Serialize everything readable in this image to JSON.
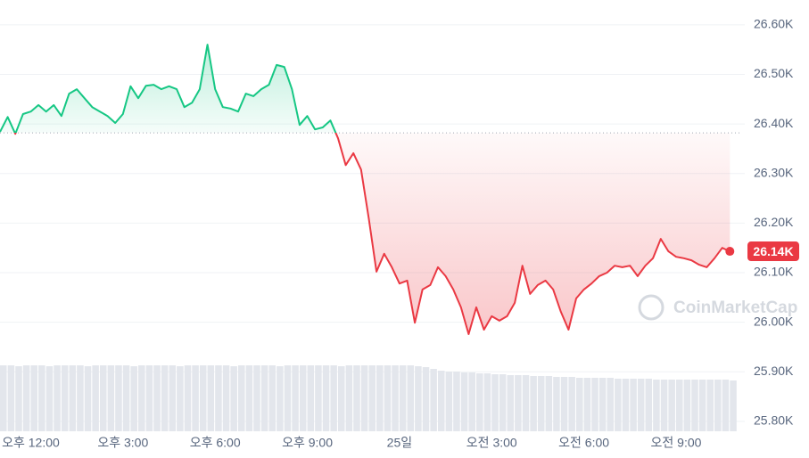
{
  "chart_data": {
    "type": "line",
    "x": [
      11,
      11.25,
      11.5,
      11.75,
      12,
      12.25,
      12.5,
      12.75,
      13,
      13.25,
      13.5,
      13.75,
      14,
      14.25,
      14.5,
      14.75,
      15,
      15.25,
      15.5,
      15.75,
      16,
      16.25,
      16.5,
      16.75,
      17,
      17.25,
      17.5,
      17.75,
      18,
      18.25,
      18.5,
      18.75,
      19,
      19.25,
      19.5,
      19.75,
      20,
      20.25,
      20.5,
      20.75,
      21,
      21.25,
      21.5,
      21.75,
      22,
      22.25,
      22.5,
      22.75,
      23,
      23.25,
      23.5,
      23.75,
      24,
      24.25,
      24.5,
      24.75,
      25,
      25.25,
      25.5,
      25.75,
      26,
      26.25,
      26.5,
      26.75,
      27,
      27.25,
      27.5,
      27.75,
      28,
      28.25,
      28.5,
      28.75,
      29,
      29.25,
      29.5,
      29.75,
      30,
      30.25,
      30.5,
      30.75,
      31,
      31.25,
      31.5,
      31.75,
      32,
      32.25,
      32.5,
      32.75,
      33,
      33.25,
      33.5,
      33.75,
      34,
      34.25,
      34.5,
      34.75
    ],
    "values": [
      26.384,
      26.414,
      26.38,
      26.42,
      26.425,
      26.438,
      26.425,
      26.438,
      26.416,
      26.461,
      26.47,
      26.452,
      26.434,
      26.425,
      26.416,
      26.402,
      26.42,
      26.476,
      26.452,
      26.477,
      26.479,
      26.47,
      26.476,
      26.47,
      26.434,
      26.443,
      26.47,
      26.56,
      26.47,
      26.434,
      26.431,
      26.425,
      26.461,
      26.456,
      26.47,
      26.479,
      26.519,
      26.515,
      26.47,
      26.398,
      26.416,
      26.389,
      26.393,
      26.407,
      26.371,
      26.317,
      26.341,
      26.308,
      26.21,
      26.102,
      26.138,
      26.111,
      26.078,
      26.084,
      25.999,
      26.066,
      26.075,
      26.111,
      26.093,
      26.066,
      26.03,
      25.976,
      26.03,
      25.985,
      26.012,
      26.003,
      26.012,
      26.039,
      26.114,
      26.057,
      26.075,
      26.084,
      26.066,
      26.021,
      25.985,
      26.048,
      26.066,
      26.078,
      26.093,
      26.1,
      26.114,
      26.111,
      26.114,
      26.093,
      26.114,
      26.129,
      26.168,
      26.143,
      26.132,
      26.129,
      26.125,
      26.116,
      26.111,
      26.129,
      26.15,
      26.143
    ],
    "volume": [
      74,
      74,
      73,
      74,
      74,
      74,
      73,
      74,
      74,
      74,
      74,
      73,
      74,
      74,
      74,
      74,
      74,
      73,
      74,
      74,
      74,
      74,
      74,
      73,
      74,
      74,
      74,
      74,
      74,
      74,
      73,
      74,
      74,
      74,
      74,
      74,
      73,
      74,
      74,
      74,
      74,
      74,
      74,
      74,
      73,
      74,
      74,
      74,
      74,
      74,
      74,
      74,
      74,
      74,
      73,
      72,
      70,
      68,
      67,
      67,
      66,
      66,
      65,
      65,
      64,
      64,
      63,
      63,
      63,
      62,
      62,
      62,
      61,
      61,
      61,
      60,
      60,
      60,
      60,
      60,
      59,
      59,
      59,
      59,
      59,
      58,
      58,
      58,
      58,
      58,
      58,
      58,
      58,
      58,
      58,
      57
    ],
    "baseline": 26.382,
    "up_color": "#16c784",
    "down_color": "#ea3943",
    "price_label": "26.14K",
    "watermark": "CoinMarketCap",
    "xlim": [
      11,
      34.8
    ],
    "xticks": [
      {
        "value": 12,
        "label": "오후 12:00"
      },
      {
        "value": 15,
        "label": "오후 3:00"
      },
      {
        "value": 18,
        "label": "오후 6:00"
      },
      {
        "value": 21,
        "label": "오후 9:00"
      },
      {
        "value": 24,
        "label": "25일"
      },
      {
        "value": 27,
        "label": "오전 3:00"
      },
      {
        "value": 30,
        "label": "오전 6:00"
      },
      {
        "value": 33,
        "label": "오전 9:00"
      }
    ],
    "ylim": [
      25.78,
      26.65
    ],
    "yticks": [
      {
        "value": 25.8,
        "label": "25.80K"
      },
      {
        "value": 25.9,
        "label": "25.90K"
      },
      {
        "value": 26.0,
        "label": "26.00K"
      },
      {
        "value": 26.1,
        "label": "26.10K"
      },
      {
        "value": 26.2,
        "label": "26.20K"
      },
      {
        "value": 26.3,
        "label": "26.30K"
      },
      {
        "value": 26.4,
        "label": "26.40K"
      },
      {
        "value": 26.5,
        "label": "26.50K"
      },
      {
        "value": 26.6,
        "label": "26.60K"
      }
    ],
    "grid": true
  }
}
